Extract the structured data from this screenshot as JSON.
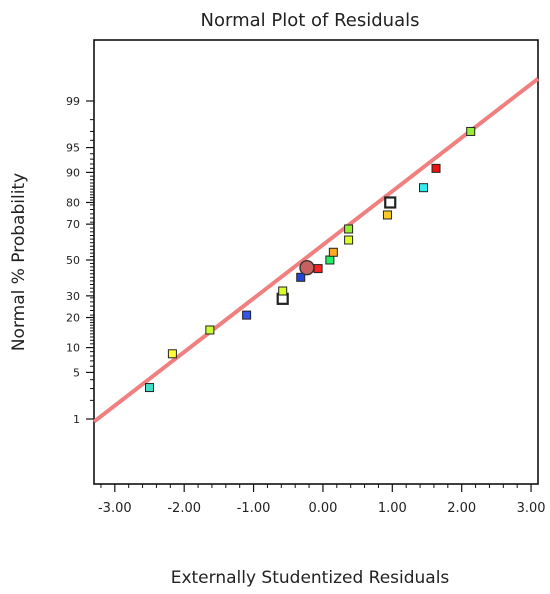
{
  "chart_data": {
    "type": "scatter",
    "title": "Normal Plot of Residuals",
    "xlabel": "Externally Studentized Residuals",
    "ylabel": "Normal % Probability",
    "xlim": [
      -3.3,
      3.1
    ],
    "x_ticks": [
      -3,
      -2,
      -1,
      0,
      1,
      2,
      3
    ],
    "x_tick_labels": [
      "-3.00",
      "-2.00",
      "-1.00",
      "0.00",
      "1.00",
      "2.00",
      "3.00"
    ],
    "y_scale": "normal-probability",
    "y_ticks": [
      1,
      5,
      10,
      20,
      30,
      50,
      70,
      80,
      90,
      95,
      99
    ],
    "y_tick_labels": [
      "1",
      "5",
      "10",
      "20",
      "30",
      "50",
      "70",
      "80",
      "90",
      "95",
      "99"
    ],
    "grid": false,
    "reference_line": {
      "color": "#f08080",
      "points": [
        [
          -3.3,
          0.9
        ],
        [
          3.1,
          99.6
        ]
      ]
    },
    "points": [
      {
        "x": -2.5,
        "y": 3.1,
        "color": "#40e0c8",
        "marker": "square"
      },
      {
        "x": -2.17,
        "y": 8.5,
        "color": "#ffff33",
        "marker": "square"
      },
      {
        "x": -1.63,
        "y": 15.3,
        "color": "#ccff33",
        "marker": "square"
      },
      {
        "x": -1.1,
        "y": 21.0,
        "color": "#3355ee",
        "marker": "square"
      },
      {
        "x": -0.58,
        "y": 28.5,
        "color": "#ffffff",
        "marker": "square"
      },
      {
        "x": -0.58,
        "y": 32.5,
        "color": "#ddff22",
        "marker": "square"
      },
      {
        "x": -0.32,
        "y": 40.0,
        "color": "#2244dd",
        "marker": "square"
      },
      {
        "x": -0.23,
        "y": 45.5,
        "color": "#c86060",
        "marker": "circle"
      },
      {
        "x": -0.07,
        "y": 45.0,
        "color": "#ff2222",
        "marker": "square"
      },
      {
        "x": 0.1,
        "y": 50.0,
        "color": "#22ee66",
        "marker": "square"
      },
      {
        "x": 0.15,
        "y": 54.5,
        "color": "#ffaa22",
        "marker": "square"
      },
      {
        "x": 0.37,
        "y": 61.5,
        "color": "#ddff22",
        "marker": "square"
      },
      {
        "x": 0.37,
        "y": 67.5,
        "color": "#99ee33",
        "marker": "square"
      },
      {
        "x": 0.93,
        "y": 74.5,
        "color": "#ffcc22",
        "marker": "square"
      },
      {
        "x": 0.97,
        "y": 80.0,
        "color": "#ffffff",
        "marker": "square"
      },
      {
        "x": 1.45,
        "y": 85.5,
        "color": "#33eeee",
        "marker": "square"
      },
      {
        "x": 1.63,
        "y": 91.0,
        "color": "#ee1111",
        "marker": "square"
      },
      {
        "x": 2.13,
        "y": 97.0,
        "color": "#99ee33",
        "marker": "square"
      }
    ]
  }
}
